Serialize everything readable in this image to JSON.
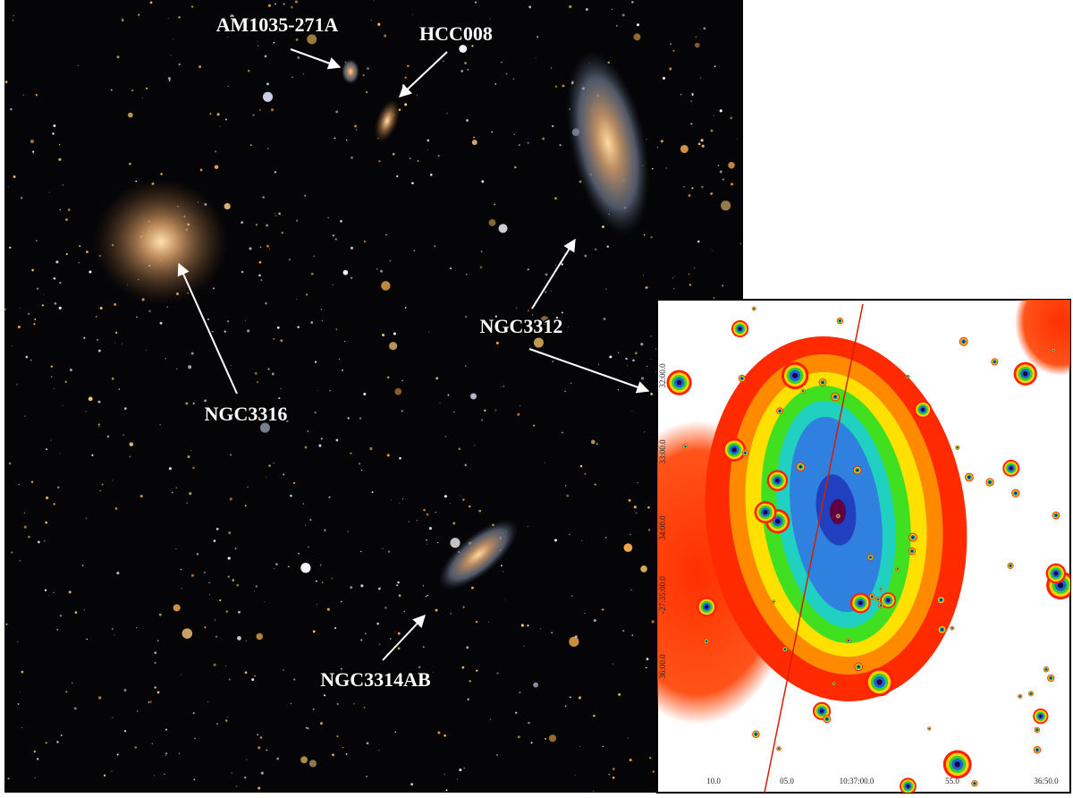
{
  "labels": [
    "AM1035-271A",
    "HCC008",
    "NGC3312",
    "NGC3316",
    "NGC3314AB"
  ],
  "inset": {
    "x_ticks": [
      "10.0",
      "05.0",
      "10:37:00.0",
      "55.0",
      "36:50.0"
    ],
    "y_ticks": [
      "32:00.0",
      "33:00.0",
      "34:00.0",
      "-27:35:00.0",
      "36:00.0"
    ]
  }
}
